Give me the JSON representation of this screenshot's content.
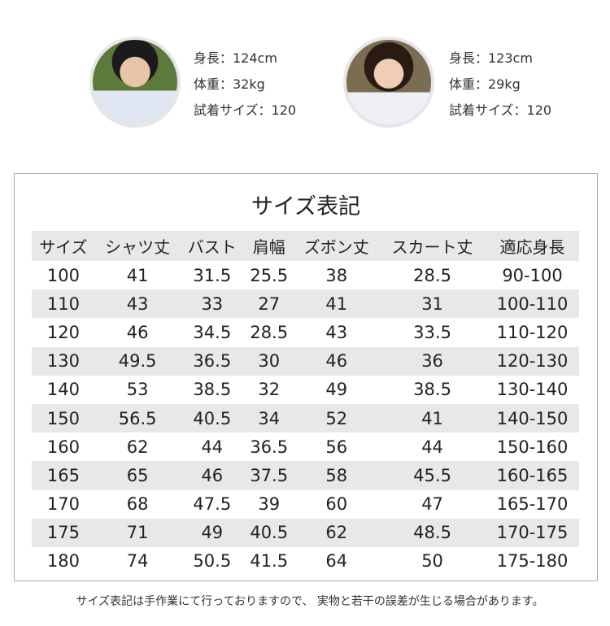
{
  "models": [
    {
      "photo": "boy-photo",
      "height": "身長：124cm",
      "weight": "体重：32kg",
      "size": "試着サイズ：120"
    },
    {
      "photo": "girl-photo",
      "height": "身長：123cm",
      "weight": "体重：29kg",
      "size": "試着サイズ：120"
    }
  ],
  "table": {
    "title": "サイズ表記",
    "headers": [
      "サイズ",
      "シャツ丈",
      "バスト",
      "肩幅",
      "ズボン丈",
      "スカート丈",
      "適応身長"
    ],
    "rows": [
      [
        "100",
        "41",
        "31.5",
        "25.5",
        "38",
        "28.5",
        "90-100"
      ],
      [
        "110",
        "43",
        "33",
        "27",
        "41",
        "31",
        "100-110"
      ],
      [
        "120",
        "46",
        "34.5",
        "28.5",
        "43",
        "33.5",
        "110-120"
      ],
      [
        "130",
        "49.5",
        "36.5",
        "30",
        "46",
        "36",
        "120-130"
      ],
      [
        "140",
        "53",
        "38.5",
        "32",
        "49",
        "38.5",
        "130-140"
      ],
      [
        "150",
        "56.5",
        "40.5",
        "34",
        "52",
        "41",
        "140-150"
      ],
      [
        "160",
        "62",
        "44",
        "36.5",
        "56",
        "44",
        "150-160"
      ],
      [
        "165",
        "65",
        "46",
        "37.5",
        "58",
        "45.5",
        "160-165"
      ],
      [
        "170",
        "68",
        "47.5",
        "39",
        "60",
        "47",
        "165-170"
      ],
      [
        "175",
        "71",
        "49",
        "40.5",
        "62",
        "48.5",
        "170-175"
      ],
      [
        "180",
        "74",
        "50.5",
        "41.5",
        "64",
        "50",
        "175-180"
      ]
    ]
  },
  "note": "サイズ表記は手作業にて行っておりますので、 実物と若干の誤差が生じる場合があります。",
  "colors": {
    "header_band": "#e8e8e8",
    "border": "#aaaaaa"
  }
}
